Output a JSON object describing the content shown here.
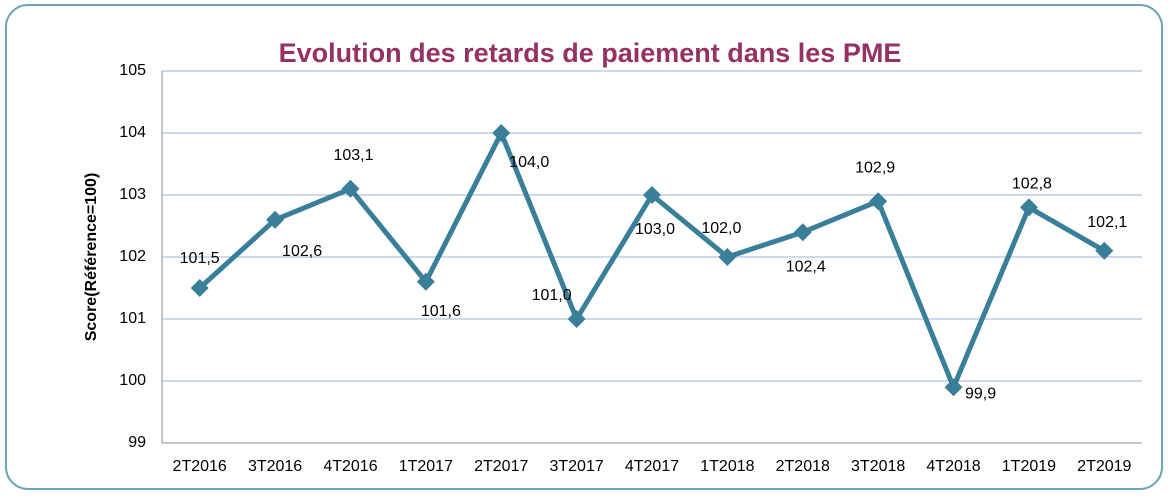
{
  "chart_data": {
    "type": "line",
    "title": "Evolution des retards de paiement dans les PME",
    "y_label": "Score(Référence=100)",
    "categories": [
      "2T2016",
      "3T2016",
      "4T2016",
      "1T2017",
      "2T2017",
      "3T2017",
      "4T2017",
      "1T2018",
      "2T2018",
      "3T2018",
      "4T2018",
      "1T2019",
      "2T2019"
    ],
    "values": [
      101.5,
      102.6,
      103.1,
      101.6,
      104.0,
      101.0,
      103.0,
      102.0,
      102.4,
      102.9,
      99.9,
      102.8,
      102.1
    ],
    "value_labels": [
      "101,5",
      "102,6",
      "103,1",
      "101,6",
      "104,0",
      "101,0",
      "103,0",
      "102,0",
      "102,4",
      "102,9",
      "99,9",
      "102,8",
      "102,1"
    ],
    "color": "#3a7f9a",
    "ylim": [
      99,
      105
    ],
    "yticks": [
      99,
      100,
      101,
      102,
      103,
      104,
      105
    ],
    "grid": true
  }
}
